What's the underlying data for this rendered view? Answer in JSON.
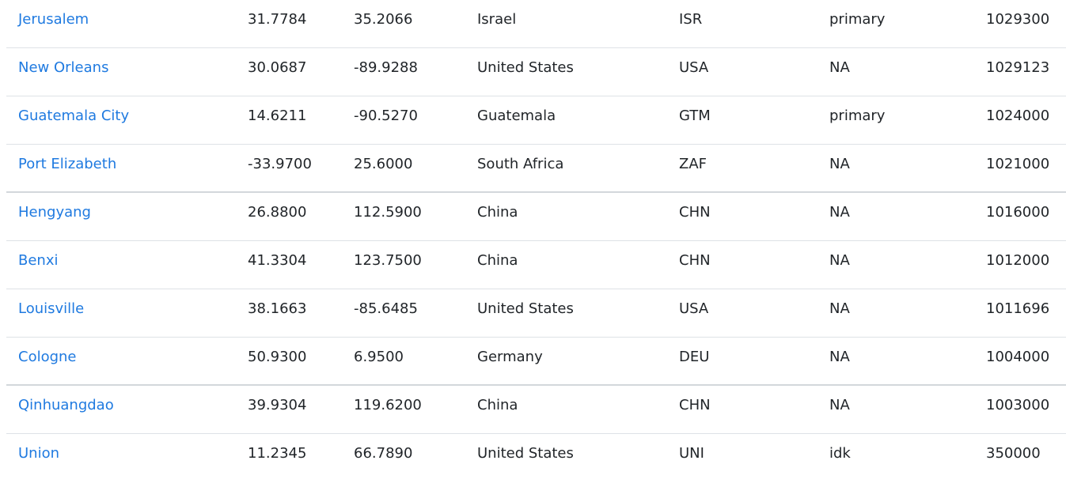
{
  "table": {
    "rows": [
      {
        "city": "Jerusalem",
        "lat": "31.7784",
        "lng": "35.2066",
        "country": "Israel",
        "iso3": "ISR",
        "capital": "primary",
        "population": "1029300"
      },
      {
        "city": "New Orleans",
        "lat": "30.0687",
        "lng": "-89.9288",
        "country": "United States",
        "iso3": "USA",
        "capital": "NA",
        "population": "1029123"
      },
      {
        "city": "Guatemala City",
        "lat": "14.6211",
        "lng": "-90.5270",
        "country": "Guatemala",
        "iso3": "GTM",
        "capital": "primary",
        "population": "1024000"
      },
      {
        "city": "Port Elizabeth",
        "lat": "-33.9700",
        "lng": "25.6000",
        "country": "South Africa",
        "iso3": "ZAF",
        "capital": "NA",
        "population": "1021000"
      },
      {
        "city": "Hengyang",
        "lat": "26.8800",
        "lng": "112.5900",
        "country": "China",
        "iso3": "CHN",
        "capital": "NA",
        "population": "1016000"
      },
      {
        "city": "Benxi",
        "lat": "41.3304",
        "lng": "123.7500",
        "country": "China",
        "iso3": "CHN",
        "capital": "NA",
        "population": "1012000"
      },
      {
        "city": "Louisville",
        "lat": "38.1663",
        "lng": "-85.6485",
        "country": "United States",
        "iso3": "USA",
        "capital": "NA",
        "population": "1011696"
      },
      {
        "city": "Cologne",
        "lat": "50.9300",
        "lng": "6.9500",
        "country": "Germany",
        "iso3": "DEU",
        "capital": "NA",
        "population": "1004000"
      },
      {
        "city": "Qinhuangdao",
        "lat": "39.9304",
        "lng": "119.6200",
        "country": "China",
        "iso3": "CHN",
        "capital": "NA",
        "population": "1003000"
      },
      {
        "city": "Union",
        "lat": "11.2345",
        "lng": "66.7890",
        "country": "United States",
        "iso3": "UNI",
        "capital": "idk",
        "population": "350000"
      }
    ]
  },
  "colors": {
    "link": "#1f7ae0",
    "text": "#212529",
    "divider": "#dee2e6"
  }
}
